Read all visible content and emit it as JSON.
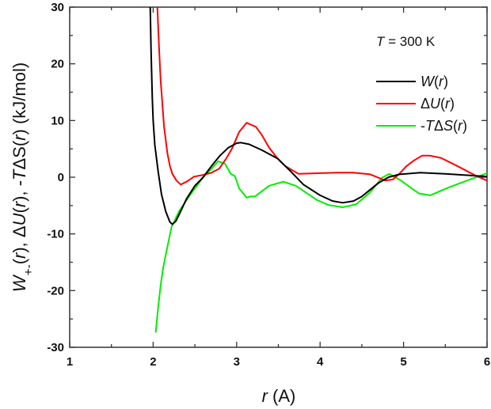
{
  "chart_data": {
    "type": "line",
    "xlabel_parts": [
      {
        "t": "r",
        "i": true
      },
      {
        "t": " (A)",
        "i": false
      }
    ],
    "ylabel_parts": [
      {
        "t": "W",
        "i": true
      },
      {
        "t": "+-",
        "i": false,
        "sub": true
      },
      {
        "t": "(",
        "i": false
      },
      {
        "t": "r",
        "i": true
      },
      {
        "t": "), Δ",
        "i": false
      },
      {
        "t": "U",
        "i": true
      },
      {
        "t": "(",
        "i": false
      },
      {
        "t": "r",
        "i": true
      },
      {
        "t": "), -",
        "i": false
      },
      {
        "t": "T",
        "i": true
      },
      {
        "t": "ΔS(",
        "i": false
      },
      {
        "t": "r",
        "i": true
      },
      {
        "t": ") (kJ/mol)",
        "i": false
      }
    ],
    "annotation_parts": [
      {
        "t": "T",
        "i": true
      },
      {
        "t": " = 300 K",
        "i": false
      }
    ],
    "xlim": [
      1,
      6
    ],
    "ylim": [
      -30,
      30
    ],
    "xticks": [
      "1",
      "2",
      "3",
      "4",
      "5",
      "6"
    ],
    "yticks": [
      "-30",
      "-20",
      "-10",
      "0",
      "10",
      "20",
      "30"
    ],
    "grid": false,
    "legend_position": "top-right",
    "series": [
      {
        "name": "W(r)",
        "legend_parts": [
          {
            "t": "W",
            "i": true
          },
          {
            "t": "(",
            "i": false
          },
          {
            "t": "r",
            "i": true
          },
          {
            "t": ")",
            "i": false
          }
        ],
        "color": "#000000",
        "x": [
          1.965,
          1.975,
          1.99,
          2.0,
          2.02,
          2.06,
          2.1,
          2.15,
          2.2,
          2.23,
          2.27,
          2.33,
          2.4,
          2.5,
          2.6,
          2.7,
          2.8,
          2.9,
          3.0,
          3.05,
          3.15,
          3.3,
          3.49,
          3.65,
          3.8,
          4.0,
          4.15,
          4.27,
          4.4,
          4.5,
          4.6,
          4.7,
          4.82,
          4.95,
          5.2,
          5.5,
          5.8,
          6.0
        ],
        "y": [
          30,
          22,
          14,
          10,
          5.7,
          1,
          -3,
          -6,
          -7.9,
          -8.3,
          -7.8,
          -6,
          -3.8,
          -1.5,
          0,
          2,
          3.8,
          5.2,
          6,
          6.1,
          5.8,
          4.8,
          3.3,
          1,
          -1.3,
          -3.2,
          -4.2,
          -4.5,
          -4.2,
          -3.4,
          -2.2,
          -1,
          0,
          0.5,
          0.8,
          0.6,
          0.3,
          0.1
        ]
      },
      {
        "name": "ΔU(r)",
        "legend_parts": [
          {
            "t": "Δ",
            "i": false
          },
          {
            "t": "U",
            "i": true
          },
          {
            "t": "(",
            "i": false
          },
          {
            "t": "r",
            "i": true
          },
          {
            "t": ")",
            "i": false
          }
        ],
        "color": "#ff0000",
        "x": [
          2.05,
          2.07,
          2.09,
          2.13,
          2.17,
          2.2,
          2.23,
          2.28,
          2.33,
          2.4,
          2.49,
          2.6,
          2.7,
          2.79,
          2.88,
          2.95,
          3.03,
          3.12,
          3.18,
          3.23,
          3.3,
          3.39,
          3.48,
          3.58,
          3.74,
          3.96,
          4.2,
          4.4,
          4.6,
          4.7,
          4.78,
          4.87,
          4.95,
          5.03,
          5.12,
          5.22,
          5.32,
          5.45,
          5.64,
          5.86,
          6.0
        ],
        "y": [
          30,
          23,
          17,
          9,
          4.3,
          2,
          0.6,
          -0.6,
          -1.3,
          -0.8,
          0.1,
          0.4,
          0.8,
          1.5,
          3.4,
          5.2,
          8,
          9.6,
          9.2,
          8.9,
          7.5,
          5.2,
          3.5,
          2,
          0.6,
          0.7,
          0.8,
          0.8,
          0.5,
          -0.1,
          -0.6,
          -0.4,
          0.6,
          1.9,
          2.9,
          3.8,
          3.8,
          3.4,
          2,
          0.3,
          -0.6
        ]
      },
      {
        "name": "-TΔS(r)",
        "legend_parts": [
          {
            "t": "-",
            "i": false
          },
          {
            "t": "T",
            "i": true
          },
          {
            "t": "Δ",
            "i": false
          },
          {
            "t": "S",
            "i": true
          },
          {
            "t": "(",
            "i": false
          },
          {
            "t": "r",
            "i": true
          },
          {
            "t": ")",
            "i": false
          }
        ],
        "color": "#00ee00",
        "x": [
          2.03,
          2.06,
          2.09,
          2.12,
          2.16,
          2.22,
          2.31,
          2.44,
          2.6,
          2.7,
          2.78,
          2.86,
          2.93,
          2.98,
          3.03,
          3.12,
          3.17,
          3.22,
          3.3,
          3.39,
          3.56,
          3.71,
          3.85,
          3.96,
          4.1,
          4.27,
          4.43,
          4.6,
          4.74,
          4.83,
          4.97,
          5.1,
          5.19,
          5.32,
          5.54,
          5.76,
          6.0
        ],
        "y": [
          -27.4,
          -23,
          -19,
          -16,
          -13,
          -8.8,
          -6,
          -3.2,
          0,
          1.5,
          2.8,
          2.4,
          0.6,
          0.2,
          -2,
          -3.6,
          -3.4,
          -3.4,
          -2.5,
          -1.5,
          -0.8,
          -1.5,
          -2.9,
          -4,
          -4.9,
          -5.3,
          -4.8,
          -2.7,
          -0.1,
          0.6,
          -0.6,
          -2,
          -2.9,
          -3.2,
          -1.8,
          -0.6,
          0.7
        ]
      }
    ]
  }
}
